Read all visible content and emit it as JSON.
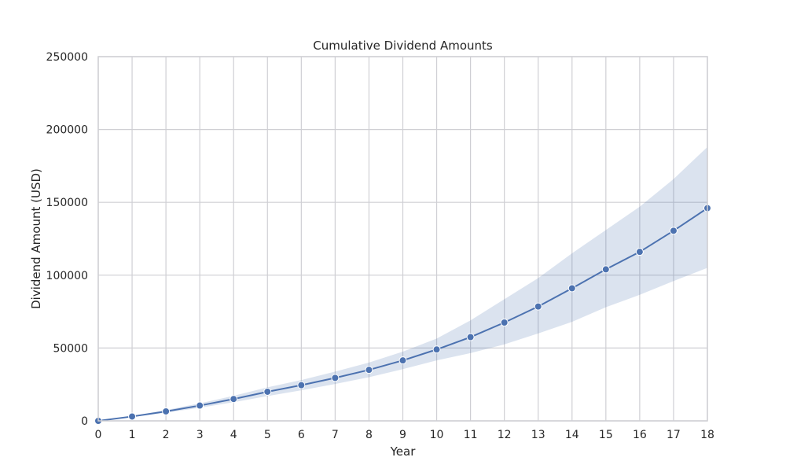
{
  "chart_data": {
    "type": "line",
    "title": "Cumulative Dividend Amounts",
    "xlabel": "Year",
    "ylabel": "Dividend Amount (USD)",
    "xlim": [
      0,
      18
    ],
    "ylim": [
      0,
      250000
    ],
    "xticks": [
      "0",
      "1",
      "2",
      "3",
      "4",
      "5",
      "6",
      "7",
      "8",
      "9",
      "10",
      "11",
      "12",
      "13",
      "14",
      "15",
      "16",
      "17",
      "18"
    ],
    "yticks": [
      "0",
      "50000",
      "100000",
      "150000",
      "200000",
      "250000"
    ],
    "grid": true,
    "legend": "none",
    "colors": {
      "line": "#4c72b0",
      "band": "#4c72b0",
      "grid": "#cfcfd4"
    },
    "series": [
      {
        "x": [
          0,
          1,
          2,
          3,
          4,
          5,
          6,
          7,
          8,
          9,
          10,
          11,
          12,
          13,
          14,
          15,
          16,
          17,
          18
        ],
        "values": [
          0,
          3000,
          6500,
          10500,
          15000,
          20000,
          24500,
          29500,
          35000,
          41500,
          49000,
          57500,
          67500,
          78500,
          91000,
          104000,
          116000,
          130500,
          146000
        ],
        "lower": [
          0,
          2600,
          5600,
          9000,
          12800,
          17000,
          21000,
          25300,
          30000,
          35500,
          41500,
          46500,
          52500,
          60000,
          68000,
          78000,
          86500,
          96000,
          105000
        ],
        "upper": [
          0,
          3400,
          7400,
          12000,
          17200,
          23000,
          28000,
          33800,
          40000,
          47500,
          56500,
          69000,
          83500,
          98000,
          115000,
          131000,
          147000,
          166000,
          188000
        ]
      }
    ]
  }
}
